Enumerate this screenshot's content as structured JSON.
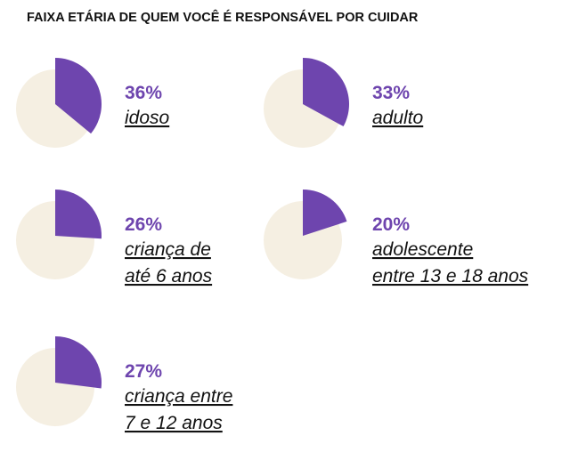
{
  "title": "FAIXA ETÁRIA DE QUEM VOCÊ É RESPONSÁVEL POR CUIDAR",
  "chart_data": [
    {
      "type": "pie",
      "values": [
        36
      ],
      "value_labels": [
        "36%"
      ],
      "label": [
        "idoso"
      ],
      "color": "#6e45ae",
      "background_color": "#f5efe2"
    },
    {
      "type": "pie",
      "values": [
        33
      ],
      "value_labels": [
        "33%"
      ],
      "label": [
        "adulto"
      ],
      "color": "#6e45ae",
      "background_color": "#f5efe2"
    },
    {
      "type": "pie",
      "values": [
        26
      ],
      "value_labels": [
        "26%"
      ],
      "label": [
        "criança de",
        "até 6 anos"
      ],
      "color": "#6e45ae",
      "background_color": "#f5efe2"
    },
    {
      "type": "pie",
      "values": [
        20
      ],
      "value_labels": [
        "20%"
      ],
      "label": [
        "adolescente",
        "entre 13 e 18 anos"
      ],
      "color": "#6e45ae",
      "background_color": "#f5efe2"
    },
    {
      "type": "pie",
      "values": [
        27
      ],
      "value_labels": [
        "27%"
      ],
      "label": [
        "criança entre",
        "7 e 12 anos"
      ],
      "color": "#6e45ae",
      "background_color": "#f5efe2"
    }
  ]
}
